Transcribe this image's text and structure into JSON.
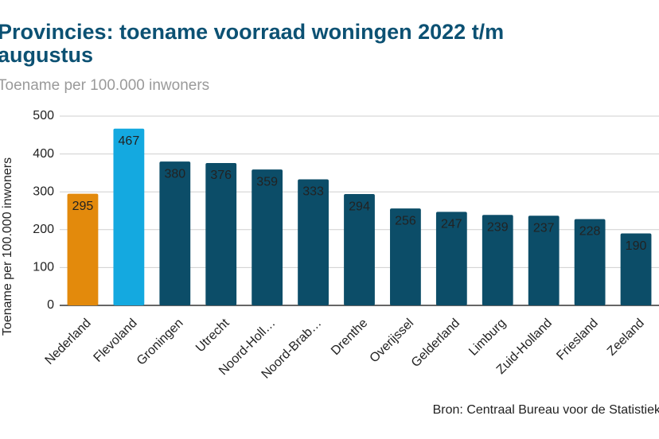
{
  "chart_data": {
    "type": "bar",
    "title": "Provincies: toename voorraad woningen 2022 t/m augustus",
    "subtitle": "Toename per 100.000 inwoners",
    "y_label": "Toename per 100.000 inwoners",
    "source": "Bron: Centraal Bureau voor de Statistiek",
    "categories": [
      "Nederland",
      "Flevoland",
      "Groningen",
      "Utrecht",
      "Noord-Holl…",
      "Noord-Brab…",
      "Drenthe",
      "Overijssel",
      "Gelderland",
      "Limburg",
      "Zuid-Holland",
      "Friesland",
      "Zeeland"
    ],
    "values": [
      295,
      467,
      380,
      376,
      359,
      333,
      294,
      256,
      247,
      239,
      237,
      228,
      190
    ],
    "colors": [
      "#e38a0c",
      "#14a9e0",
      "#0c4d68",
      "#0c4d68",
      "#0c4d68",
      "#0c4d68",
      "#0c4d68",
      "#0c4d68",
      "#0c4d68",
      "#0c4d68",
      "#0c4d68",
      "#0c4d68",
      "#0c4d68"
    ],
    "ylim": [
      0,
      500
    ],
    "yticks": [
      0,
      100,
      200,
      300,
      400,
      500
    ],
    "grid": true
  }
}
